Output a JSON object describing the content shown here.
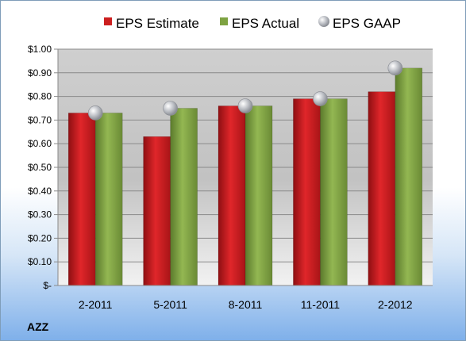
{
  "chart_data": {
    "type": "bar",
    "ticker": "AZZ",
    "categories": [
      "2-2011",
      "5-2011",
      "8-2011",
      "11-2011",
      "2-2012"
    ],
    "series": [
      {
        "name": "EPS Estimate",
        "kind": "bar",
        "color": "#cc1f1f",
        "values": [
          0.73,
          0.63,
          0.76,
          0.79,
          0.82
        ]
      },
      {
        "name": "EPS Actual",
        "kind": "bar",
        "color": "#7ea342",
        "values": [
          0.73,
          0.75,
          0.76,
          0.79,
          0.92
        ]
      },
      {
        "name": "EPS GAAP",
        "kind": "marker",
        "color": "#b8bcc4",
        "values": [
          0.73,
          0.75,
          0.76,
          0.79,
          0.92
        ]
      }
    ],
    "y_ticks": [
      "$-",
      "$0.10",
      "$0.20",
      "$0.30",
      "$0.40",
      "$0.50",
      "$0.60",
      "$0.70",
      "$0.80",
      "$0.90",
      "$1.00"
    ],
    "ylim": [
      0,
      1.0
    ],
    "grid": true,
    "legend_position": "top"
  }
}
